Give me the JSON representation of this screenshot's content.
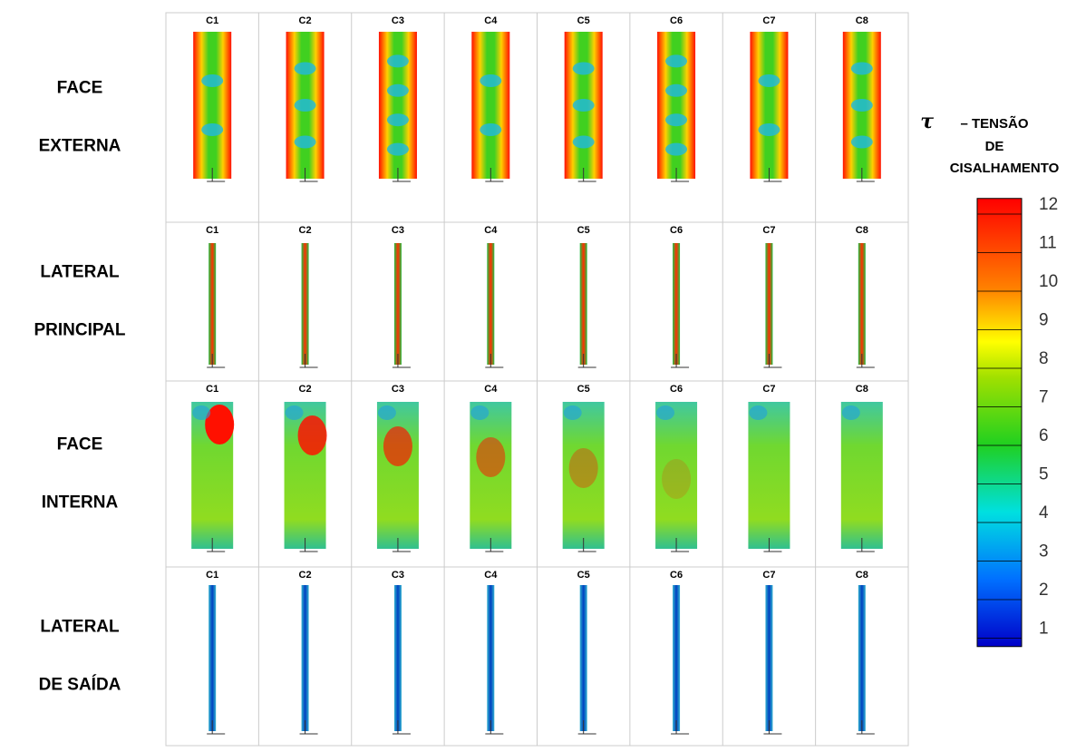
{
  "rows": [
    {
      "label": [
        "FACE",
        "EXTERNA"
      ],
      "columns": [
        "C1",
        "C2",
        "C3",
        "C4",
        "C5",
        "C6",
        "C7",
        "C8"
      ]
    },
    {
      "label": [
        "LATERAL",
        "PRINCIPAL"
      ],
      "columns": [
        "C1",
        "C2",
        "C3",
        "C4",
        "C5",
        "C6",
        "C7",
        "C8"
      ]
    },
    {
      "label": [
        "FACE",
        "INTERNA"
      ],
      "columns": [
        "C1",
        "C2",
        "C3",
        "C4",
        "C5",
        "C6",
        "C7",
        "C8"
      ]
    },
    {
      "label": [
        "LATERAL",
        "DE SAÍDA"
      ],
      "columns": [
        "C1",
        "C2",
        "C3",
        "C4",
        "C5",
        "C6",
        "C7",
        "C8"
      ]
    }
  ],
  "legend": {
    "symbol": "τ",
    "title": [
      "– TENSÃO",
      "DE",
      "CISALHAMENTO"
    ],
    "ticks": [
      12,
      11,
      10,
      9,
      8,
      7,
      6,
      5,
      4,
      3,
      2,
      1
    ]
  }
}
